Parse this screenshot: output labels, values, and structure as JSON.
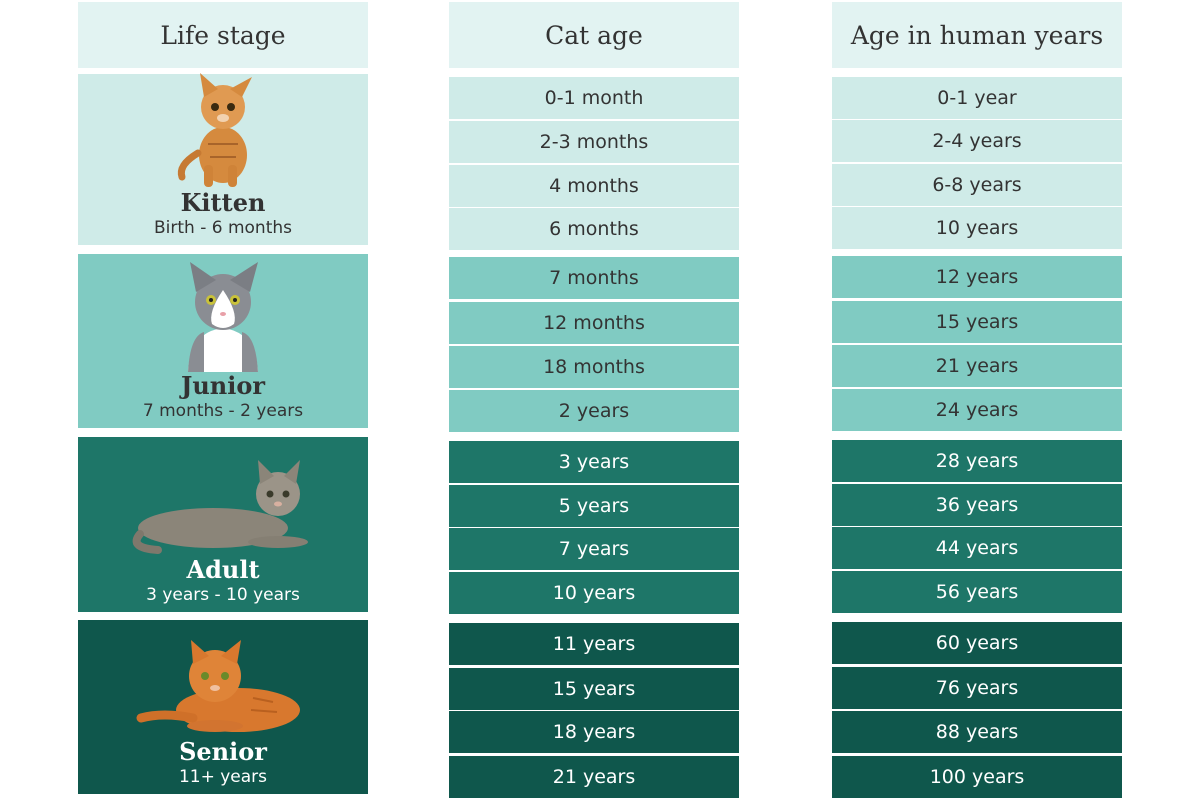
{
  "headers": {
    "life_stage": "Life stage",
    "cat_age": "Cat age",
    "human_age": "Age in human years"
  },
  "stages": [
    {
      "name": "Kitten",
      "range": "Birth - 6 months",
      "icon": "kitten-icon",
      "color": "#cfebe8"
    },
    {
      "name": "Junior",
      "range": "7 months - 2 years",
      "icon": "junior-cat-icon",
      "color": "#80cbc2"
    },
    {
      "name": "Adult",
      "range": "3 years - 10 years",
      "icon": "adult-cat-icon",
      "color": "#1e7668"
    },
    {
      "name": "Senior",
      "range": "11+ years",
      "icon": "senior-cat-icon",
      "color": "#0f574c"
    }
  ],
  "rows": [
    [
      {
        "cat": "0-1 month",
        "human": "0-1 year"
      },
      {
        "cat": "2-3 months",
        "human": "2-4 years"
      },
      {
        "cat": "4 months",
        "human": "6-8 years"
      },
      {
        "cat": "6 months",
        "human": "10 years"
      }
    ],
    [
      {
        "cat": "7 months",
        "human": "12 years"
      },
      {
        "cat": "12 months",
        "human": "15 years"
      },
      {
        "cat": "18 months",
        "human": "21 years"
      },
      {
        "cat": "2 years",
        "human": "24 years"
      }
    ],
    [
      {
        "cat": "3 years",
        "human": "28 years"
      },
      {
        "cat": "5 years",
        "human": "36 years"
      },
      {
        "cat": "7 years",
        "human": "44 years"
      },
      {
        "cat": "10 years",
        "human": "56 years"
      }
    ],
    [
      {
        "cat": "11 years",
        "human": "60 years"
      },
      {
        "cat": "15 years",
        "human": "76 years"
      },
      {
        "cat": "18 years",
        "human": "88 years"
      },
      {
        "cat": "21 years",
        "human": "100 years"
      }
    ]
  ]
}
